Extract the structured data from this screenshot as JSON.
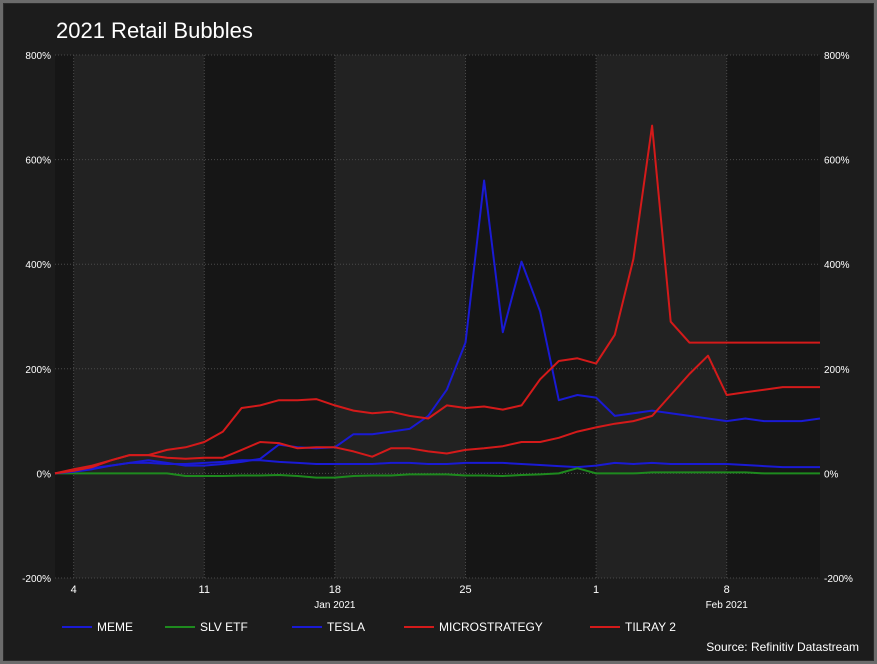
{
  "chart_data": {
    "type": "line",
    "title": "2021 Retail Bubbles",
    "source": "Source: Refinitiv Datastream",
    "ylim": [
      -200,
      800
    ],
    "y_ticks": [
      -200,
      0,
      200,
      400,
      600,
      800
    ],
    "y_tick_labels": [
      "-200%",
      "0%",
      "200%",
      "400%",
      "600%",
      "800%"
    ],
    "x_ticks": [
      {
        "date": "2021-01-04",
        "label": "4"
      },
      {
        "date": "2021-01-11",
        "label": "11"
      },
      {
        "date": "2021-01-18",
        "label": "18"
      },
      {
        "date": "2021-01-25",
        "label": "25"
      },
      {
        "date": "2021-02-01",
        "label": "1"
      },
      {
        "date": "2021-02-08",
        "label": "8"
      }
    ],
    "month_labels": [
      {
        "date": "2021-01-18",
        "label": "Jan 2021"
      },
      {
        "date": "2021-02-08",
        "label": "Feb 2021"
      }
    ],
    "x": [
      "2021-01-03",
      "2021-01-04",
      "2021-01-05",
      "2021-01-06",
      "2021-01-07",
      "2021-01-08",
      "2021-01-09",
      "2021-01-10",
      "2021-01-11",
      "2021-01-12",
      "2021-01-13",
      "2021-01-14",
      "2021-01-15",
      "2021-01-16",
      "2021-01-17",
      "2021-01-18",
      "2021-01-19",
      "2021-01-20",
      "2021-01-21",
      "2021-01-22",
      "2021-01-23",
      "2021-01-24",
      "2021-01-25",
      "2021-01-26",
      "2021-01-27",
      "2021-01-28",
      "2021-01-29",
      "2021-01-30",
      "2021-01-31",
      "2021-02-01",
      "2021-02-02",
      "2021-02-03",
      "2021-02-04",
      "2021-02-05",
      "2021-02-06",
      "2021-02-07",
      "2021-02-08",
      "2021-02-09",
      "2021-02-10",
      "2021-02-11",
      "2021-02-12",
      "2021-02-13"
    ],
    "series": [
      {
        "name": "MEME",
        "color": "#1a1ad4",
        "values": [
          0,
          5,
          10,
          15,
          20,
          20,
          18,
          18,
          20,
          22,
          25,
          25,
          22,
          20,
          18,
          18,
          18,
          18,
          20,
          20,
          18,
          18,
          20,
          20,
          20,
          18,
          16,
          14,
          12,
          15,
          20,
          18,
          20,
          18,
          18,
          18,
          18,
          16,
          14,
          12,
          12,
          12
        ]
      },
      {
        "name": "SLV ETF",
        "color": "#1e8a1e",
        "values": [
          0,
          0,
          0,
          0,
          0,
          0,
          0,
          -5,
          -5,
          -5,
          -4,
          -4,
          -3,
          -5,
          -8,
          -8,
          -5,
          -4,
          -4,
          -2,
          -2,
          -2,
          -4,
          -4,
          -5,
          -3,
          -2,
          0,
          10,
          0,
          0,
          0,
          2,
          2,
          2,
          2,
          2,
          2,
          0,
          0,
          0,
          0
        ]
      },
      {
        "name": "TESLA",
        "color": "#1a1ad4",
        "values": [
          0,
          3,
          8,
          15,
          20,
          25,
          20,
          15,
          15,
          18,
          22,
          28,
          55,
          50,
          48,
          50,
          75,
          75,
          80,
          85,
          110,
          160,
          250,
          560,
          270,
          405,
          310,
          140,
          150,
          145,
          110,
          115,
          120,
          115,
          110,
          105,
          100,
          105,
          100,
          100,
          100,
          105
        ]
      },
      {
        "name": "MICROSTRATEGY",
        "color": "#d41a1a",
        "values": [
          0,
          8,
          15,
          25,
          35,
          35,
          30,
          28,
          30,
          30,
          45,
          60,
          58,
          48,
          50,
          50,
          42,
          32,
          48,
          48,
          42,
          38,
          45,
          48,
          52,
          60,
          60,
          68,
          80,
          88,
          95,
          100,
          110,
          150,
          190,
          225,
          150,
          155,
          160,
          165,
          165,
          165
        ]
      },
      {
        "name": "TILRAY 2",
        "color": "#d41a1a",
        "values": [
          0,
          5,
          12,
          25,
          35,
          35,
          45,
          50,
          60,
          80,
          125,
          130,
          140,
          140,
          142,
          130,
          120,
          115,
          118,
          110,
          105,
          130,
          125,
          128,
          122,
          130,
          180,
          215,
          220,
          210,
          265,
          410,
          665,
          290,
          250,
          250,
          250,
          250,
          250,
          250,
          250,
          250
        ]
      }
    ],
    "grid": true,
    "legend": "bottom"
  }
}
